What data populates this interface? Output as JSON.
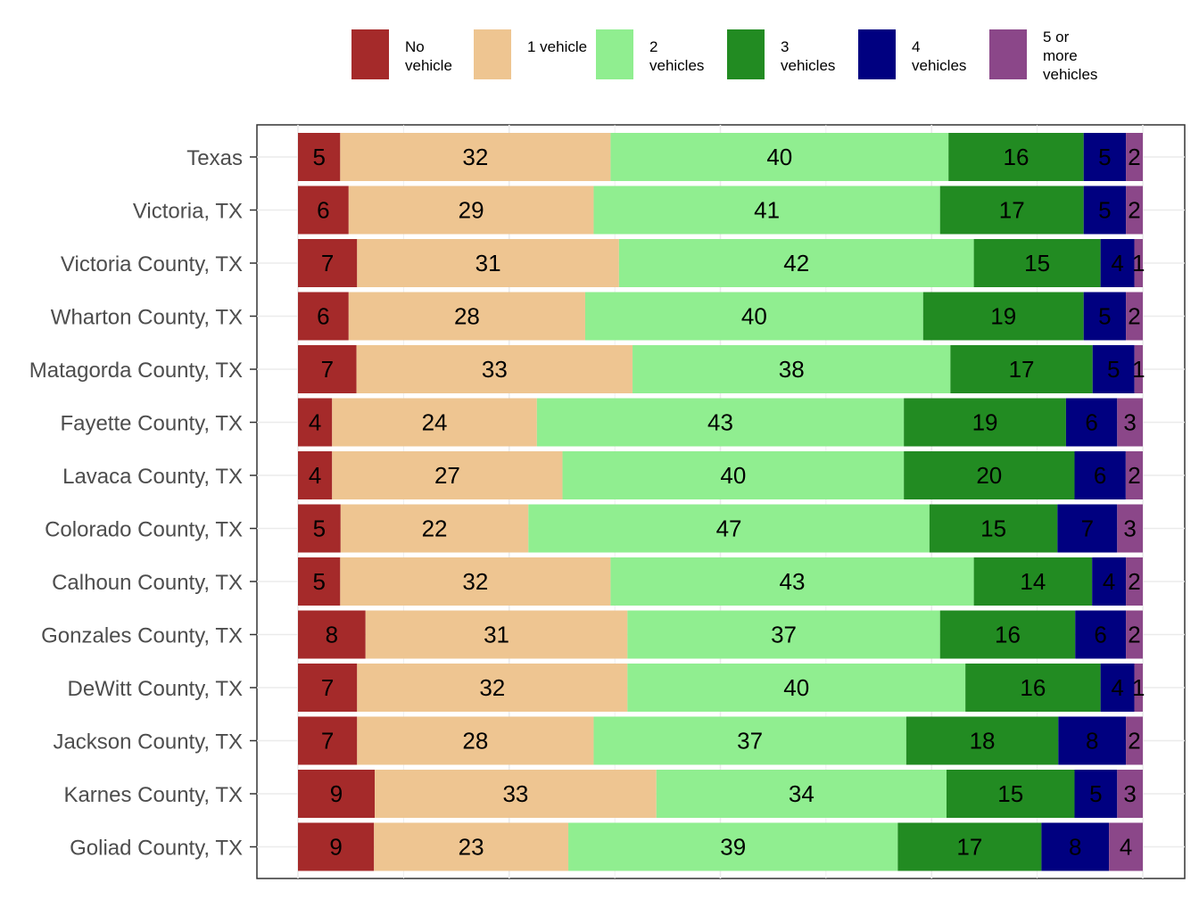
{
  "chart_data": {
    "type": "bar",
    "orientation": "horizontal",
    "stacked": true,
    "title": "",
    "xlabel": "",
    "ylabel": "",
    "xlim": [
      0,
      100
    ],
    "grid": true,
    "legend_position": "top",
    "categories": [
      "Texas",
      "Victoria, TX",
      "Victoria County, TX",
      "Wharton County, TX",
      "Matagorda County, TX",
      "Fayette County, TX",
      "Lavaca County, TX",
      "Colorado County, TX",
      "Calhoun County, TX",
      "Gonzales County, TX",
      "DeWitt County, TX",
      "Jackson County, TX",
      "Karnes County, TX",
      "Goliad County, TX"
    ],
    "series": [
      {
        "name": "No vehicle",
        "color": "#a52a2a",
        "values": [
          5,
          6,
          7,
          6,
          7,
          4,
          4,
          5,
          5,
          8,
          7,
          7,
          9,
          9
        ]
      },
      {
        "name": "1 vehicle",
        "color": "#eec591",
        "values": [
          32,
          29,
          31,
          28,
          33,
          24,
          27,
          22,
          32,
          31,
          32,
          28,
          33,
          23
        ]
      },
      {
        "name": "2 vehicles",
        "color": "#90ee90",
        "values": [
          40,
          41,
          42,
          40,
          38,
          43,
          40,
          47,
          43,
          37,
          40,
          37,
          34,
          39
        ]
      },
      {
        "name": "3 vehicles",
        "color": "#228b22",
        "values": [
          16,
          17,
          15,
          19,
          17,
          19,
          20,
          15,
          14,
          16,
          16,
          18,
          15,
          17
        ]
      },
      {
        "name": "4 vehicles",
        "color": "#000080",
        "values": [
          5,
          5,
          4,
          5,
          5,
          6,
          6,
          7,
          4,
          6,
          4,
          8,
          5,
          8
        ]
      },
      {
        "name": "5 or more vehicles",
        "color": "#8b4789",
        "values": [
          2,
          2,
          1,
          2,
          1,
          3,
          2,
          3,
          2,
          2,
          1,
          2,
          3,
          4
        ]
      }
    ]
  }
}
